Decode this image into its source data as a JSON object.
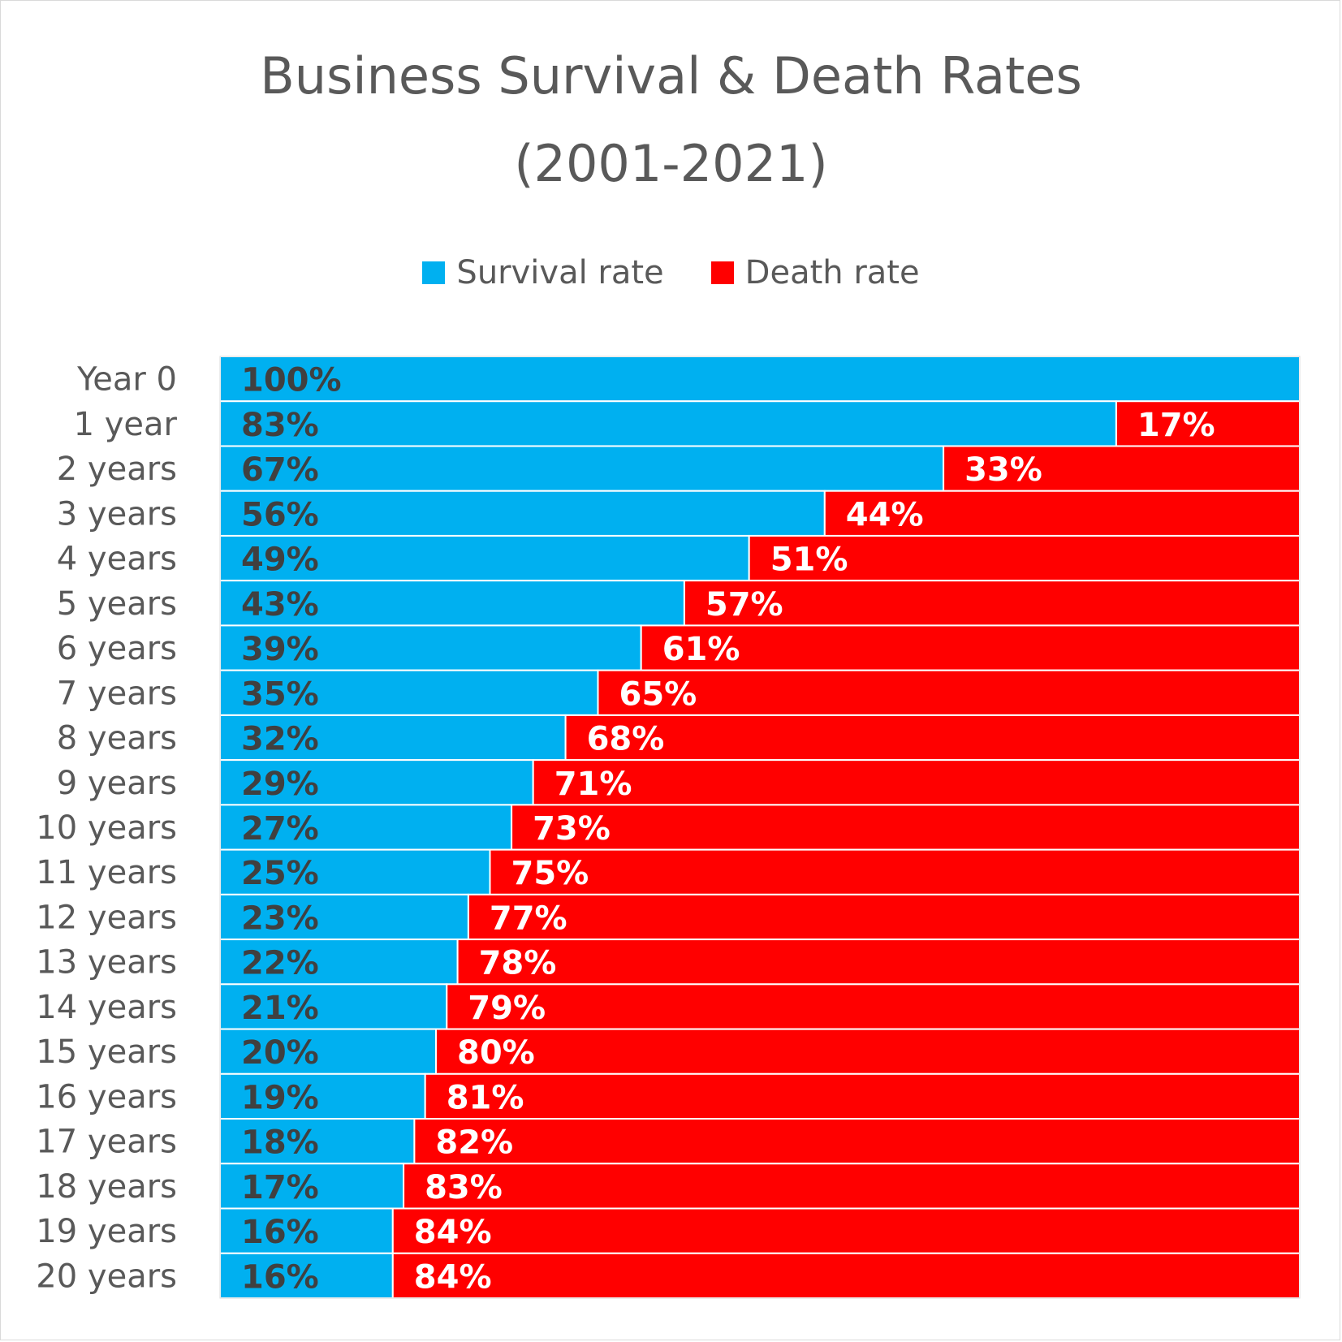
{
  "chart_data": {
    "type": "bar",
    "orientation": "horizontal",
    "stacked": true,
    "title_line1": "Business Survival & Death Rates",
    "title_line2": "(2001-2021)",
    "xlabel": "",
    "ylabel": "",
    "xlim": [
      0,
      100
    ],
    "categories": [
      "Year 0",
      "1 year",
      "2 years",
      "3 years",
      "4 years",
      "5 years",
      "6 years",
      "7 years",
      "8 years",
      "9 years",
      "10 years",
      "11 years",
      "12 years",
      "13 years",
      "14 years",
      "15 years",
      "16 years",
      "17 years",
      "18 years",
      "19 years",
      "20 years"
    ],
    "series": [
      {
        "name": "Survival rate",
        "color": "#00B0F0",
        "label_color": "#404040",
        "values": [
          100,
          83,
          67,
          56,
          49,
          43,
          39,
          35,
          32,
          29,
          27,
          25,
          23,
          22,
          21,
          20,
          19,
          18,
          17,
          16,
          16
        ]
      },
      {
        "name": "Death rate",
        "color": "#FF0000",
        "label_color": "#FFFFFF",
        "values": [
          0,
          17,
          33,
          44,
          51,
          57,
          61,
          65,
          68,
          71,
          73,
          75,
          77,
          78,
          79,
          80,
          81,
          82,
          83,
          84,
          84
        ]
      }
    ],
    "legend_position": "top",
    "grid": true
  }
}
